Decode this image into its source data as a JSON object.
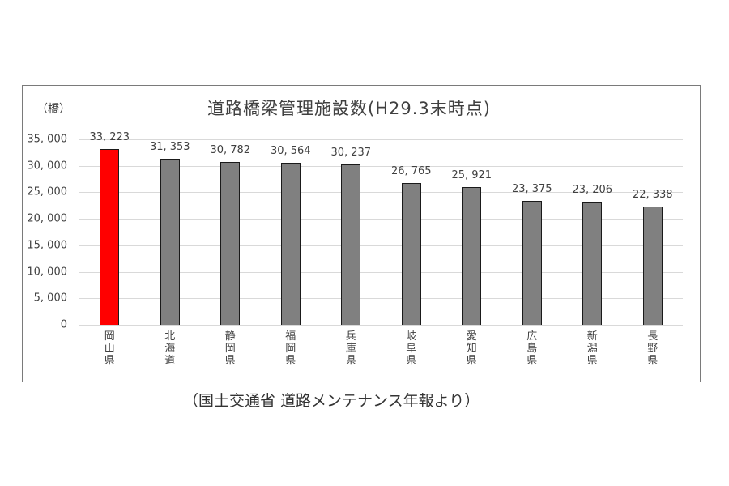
{
  "chart_data": {
    "type": "bar",
    "title": "道路橋梁管理施設数(H29.3末時点)",
    "ylabel": "（橋）",
    "xlabel": "",
    "categories": [
      "岡山県",
      "北海道",
      "静岡県",
      "福岡県",
      "兵庫県",
      "岐阜県",
      "愛知県",
      "広島県",
      "新潟県",
      "長野県"
    ],
    "values": [
      33223,
      31353,
      30782,
      30564,
      30237,
      26765,
      25921,
      23375,
      23206,
      22338
    ],
    "value_labels": [
      "33, 223",
      "31, 353",
      "30, 782",
      "30, 564",
      "30, 237",
      "26, 765",
      "25, 921",
      "23, 375",
      "23, 206",
      "22, 338"
    ],
    "ylim": [
      0,
      35000
    ],
    "yticks": [
      0,
      5000,
      10000,
      15000,
      20000,
      25000,
      30000,
      35000
    ],
    "ytick_labels": [
      "0",
      "5, 000",
      "10, 000",
      "15, 000",
      "20, 000",
      "25, 000",
      "30, 000",
      "35, 000"
    ],
    "grid": true,
    "legend": null,
    "colors": {
      "highlight": "#ff0000",
      "default": "#808080",
      "edge": "#1a1a1a",
      "grid": "#d9d9d9"
    },
    "highlight_index": 0
  },
  "caption": "（国土交通省 道路メンテナンス年報より）"
}
